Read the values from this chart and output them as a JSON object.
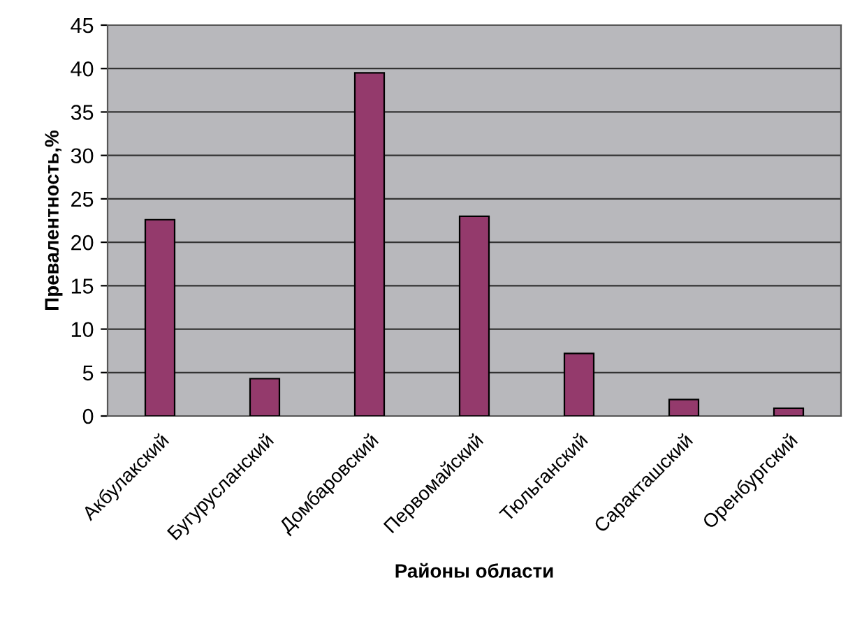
{
  "chart_data": {
    "type": "bar",
    "xlabel": "Районы области",
    "ylabel": "Превалентность,%",
    "categories": [
      "Акбулакский",
      "Бугурусланский",
      "Домбаровский",
      "Первомайский",
      "Тюльганский",
      "Саракташский",
      "Оренбургский"
    ],
    "values": [
      22.6,
      4.3,
      39.5,
      23.0,
      7.2,
      1.9,
      0.9
    ],
    "color": "#943a6c",
    "ylim": [
      0,
      45
    ],
    "yticks": [
      0,
      5,
      10,
      15,
      20,
      25,
      30,
      35,
      40,
      45
    ],
    "grid": "y"
  }
}
